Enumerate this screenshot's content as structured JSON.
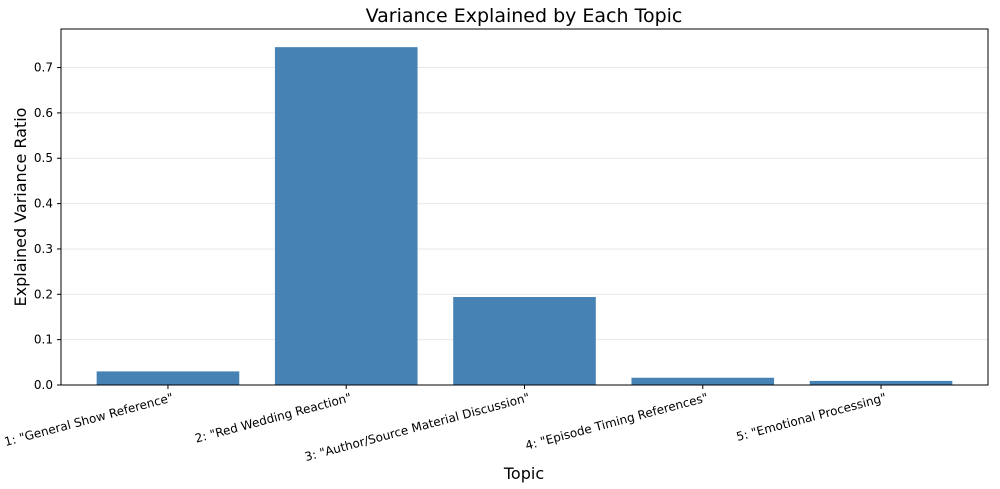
{
  "chart_data": {
    "type": "bar",
    "title": "Variance Explained by Each Topic",
    "xlabel": "Topic",
    "ylabel": "Explained Variance Ratio",
    "categories": [
      "1: \"General Show Reference\"",
      "2: \"Red Wedding Reaction\"",
      "3: \"Author/Source Material Discussion\"",
      "4: \"Episode Timing References\"",
      "5: \"Emotional Processing\""
    ],
    "values": [
      0.03,
      0.745,
      0.194,
      0.016,
      0.009
    ],
    "ylim": [
      0,
      0.785
    ],
    "yticks": [
      0.0,
      0.1,
      0.2,
      0.3,
      0.4,
      0.5,
      0.6,
      0.7
    ],
    "ytick_labels": [
      "0.0",
      "0.1",
      "0.2",
      "0.3",
      "0.4",
      "0.5",
      "0.6",
      "0.7"
    ],
    "grid": true,
    "bar_color": "#4682b4",
    "grid_color": "#e8e8e8",
    "axis_color": "#000000"
  }
}
